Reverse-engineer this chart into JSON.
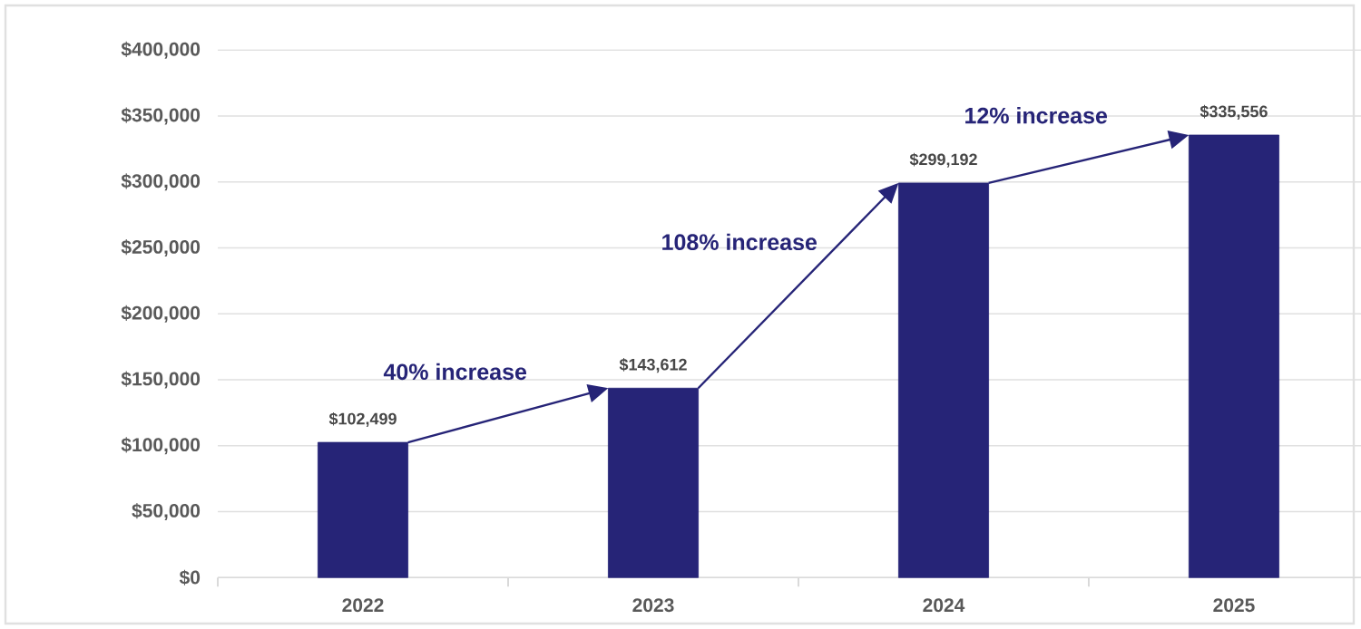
{
  "chart_data": {
    "type": "bar",
    "categories": [
      "2022",
      "2023",
      "2024",
      "2025"
    ],
    "values": [
      102499,
      143612,
      299192,
      335556
    ],
    "color": "#262477",
    "value_labels": [
      "$102,499",
      "$143,612",
      "$299,192",
      "$335,556"
    ],
    "annotations": [
      "40% increase",
      "108% increase",
      "12% increase"
    ],
    "ylim": [
      0,
      400000
    ],
    "yticks": [
      {
        "value": 0,
        "label": "$0"
      },
      {
        "value": 50000,
        "label": "$50,000"
      },
      {
        "value": 100000,
        "label": "$100,000"
      },
      {
        "value": 150000,
        "label": "$150,000"
      },
      {
        "value": 200000,
        "label": "$200,000"
      },
      {
        "value": 250000,
        "label": "$250,000"
      },
      {
        "value": 300000,
        "label": "$300,000"
      },
      {
        "value": 350000,
        "label": "$350,000"
      },
      {
        "value": 400000,
        "label": "$400,000"
      }
    ],
    "grid": "y"
  }
}
